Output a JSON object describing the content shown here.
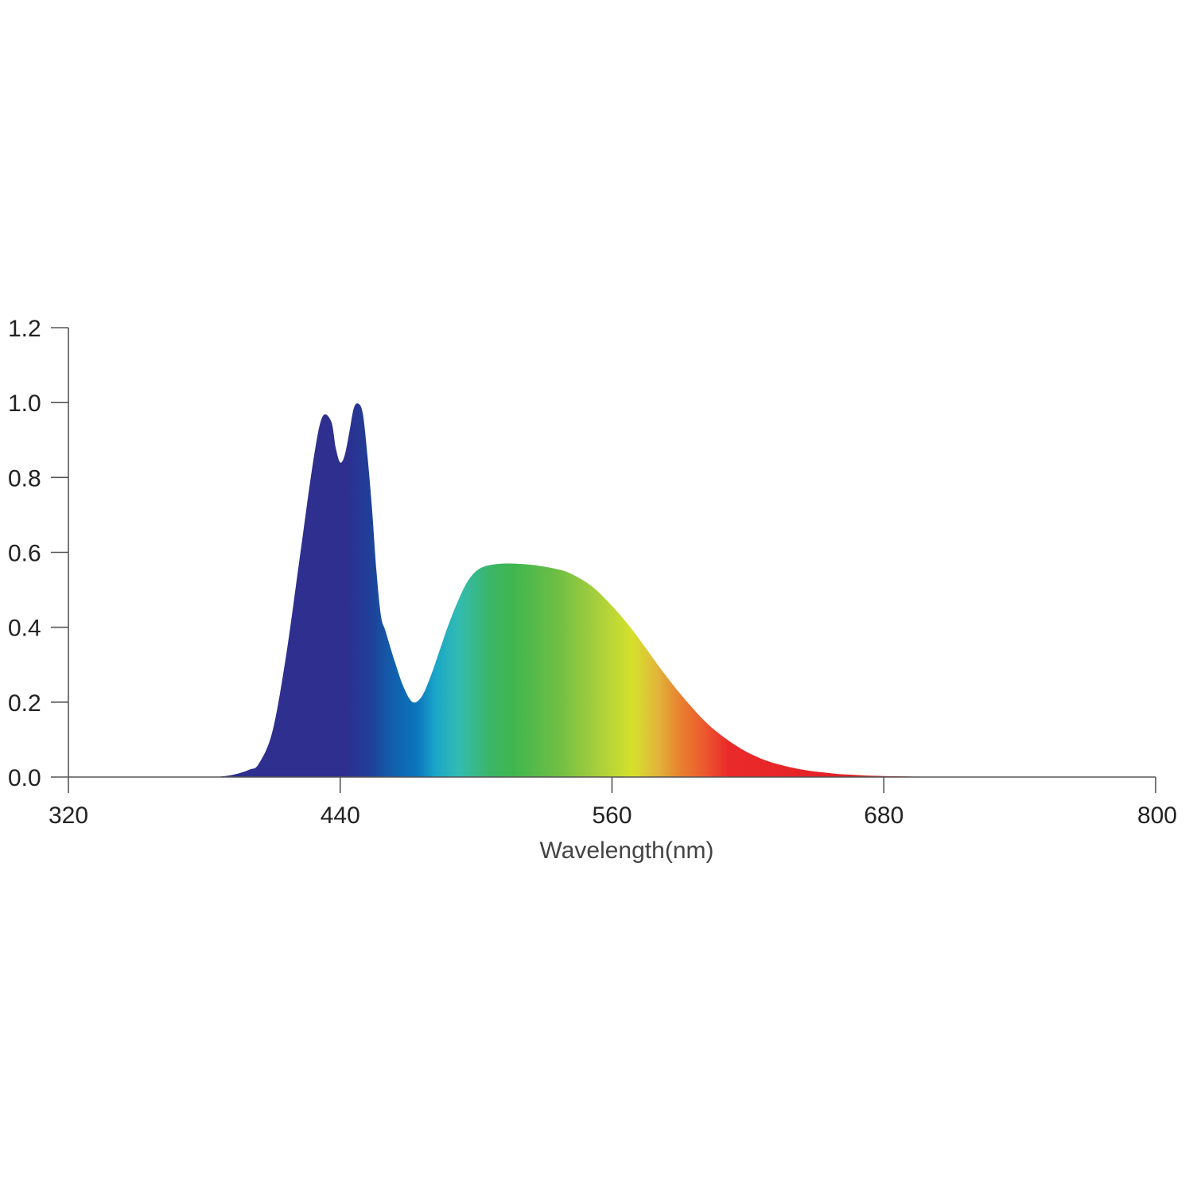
{
  "chart_data": {
    "type": "area",
    "title": "",
    "xlabel": "Wavelength(nm)",
    "ylabel": "",
    "xlim": [
      320,
      800
    ],
    "ylim": [
      0,
      1.2
    ],
    "xticks": [
      "320",
      "440",
      "560",
      "680",
      "800"
    ],
    "yticks": [
      "0.0",
      "0.2",
      "0.4",
      "0.6",
      "0.8",
      "1.0",
      "1.2"
    ],
    "grid": false,
    "legend": "none",
    "fill": "visible-spectrum gradient",
    "series": [
      {
        "x": [
          320,
          380,
          388,
          394,
          400,
          404,
          410,
          416,
          422,
          428,
          432,
          436,
          438,
          440,
          442,
          444,
          446,
          448,
          450,
          452,
          454,
          456,
          458,
          460,
          464,
          468,
          472,
          476,
          480,
          484,
          488,
          492,
          496,
          500,
          504,
          508,
          512,
          516,
          520,
          524,
          528,
          532,
          536,
          540,
          546,
          552,
          558,
          564,
          570,
          576,
          582,
          588,
          594,
          600,
          606,
          612,
          618,
          624,
          630,
          636,
          642,
          648,
          654,
          660,
          666,
          672,
          678,
          684,
          690,
          696,
          702,
          710,
          720,
          730,
          740,
          750,
          760,
          770,
          780,
          790,
          800
        ],
        "y": [
          0.0,
          0.0,
          0.002,
          0.008,
          0.02,
          0.035,
          0.12,
          0.32,
          0.58,
          0.84,
          0.96,
          0.95,
          0.88,
          0.84,
          0.86,
          0.92,
          0.985,
          0.997,
          0.97,
          0.86,
          0.72,
          0.55,
          0.43,
          0.39,
          0.31,
          0.24,
          0.2,
          0.215,
          0.27,
          0.34,
          0.41,
          0.47,
          0.52,
          0.55,
          0.563,
          0.568,
          0.57,
          0.57,
          0.569,
          0.567,
          0.564,
          0.56,
          0.555,
          0.548,
          0.53,
          0.505,
          0.47,
          0.43,
          0.385,
          0.335,
          0.285,
          0.238,
          0.195,
          0.155,
          0.122,
          0.095,
          0.072,
          0.054,
          0.04,
          0.03,
          0.022,
          0.016,
          0.012,
          0.008,
          0.006,
          0.004,
          0.003,
          0.002,
          0.0015,
          0.001,
          0.0007,
          0.0004,
          0.0002,
          0.0001,
          0.0,
          0.0,
          0.0,
          0.0,
          0.0,
          0.0,
          0.0
        ]
      }
    ]
  }
}
